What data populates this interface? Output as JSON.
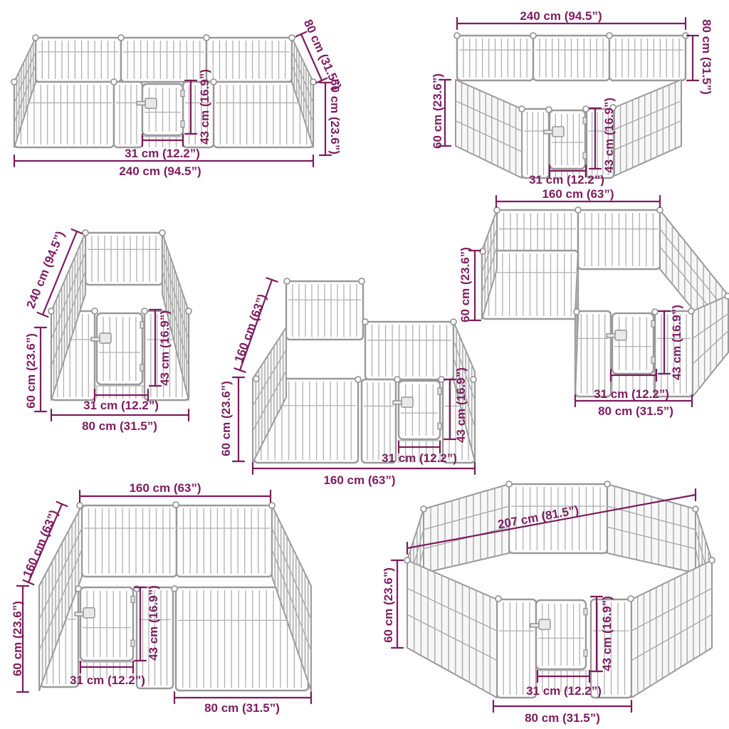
{
  "page": {
    "background": "#ffffff"
  },
  "colors": {
    "dimension": "#7d1c5f",
    "fence_outline": "#9a9a9a",
    "fence_bar": "#b0b0b0",
    "background": "#ffffff"
  },
  "configs": [
    {
      "id": "rectangle-240x80",
      "dims": {
        "bottom_width": "240 cm (94.5”)",
        "depth": "80 cm (31.5”)",
        "height": "60 cm (23.6”)",
        "door_height": "43 cm (16.9”)",
        "door_width": "31 cm (12.2”)"
      }
    },
    {
      "id": "trapezoid-240",
      "dims": {
        "top_width": "240 cm (94.5”)",
        "back_height": "80 cm (31.5”)",
        "front_height": "60 cm (23.6”)",
        "door_height": "43 cm (16.9”)",
        "door_width": "31 cm (12.2”)"
      }
    },
    {
      "id": "corridor-240x80",
      "dims": {
        "length": "240 cm (94.5”)",
        "height": "60 cm (23.6”)",
        "door_height": "43 cm (16.9”)",
        "door_width": "31 cm (12.2”)",
        "front_width": "80 cm (31.5”)"
      }
    },
    {
      "id": "square-160-raised-panel",
      "dims": {
        "depth": "160 cm (63”)",
        "height": "60 cm (23.6”)",
        "door_height": "43 cm (16.9”)",
        "door_width": "31 cm (12.2”)",
        "bottom_width": "160 cm (63”)"
      }
    },
    {
      "id": "l-shape-160x80",
      "dims": {
        "top_width": "160 cm (63”)",
        "height": "60 cm (23.6”)",
        "door_height": "43 cm (16.9”)",
        "door_width": "31 cm (12.2”)",
        "bottom_width": "80 cm (31.5”)"
      }
    },
    {
      "id": "square-160x160",
      "dims": {
        "top_width": "160 cm (63”)",
        "depth": "160 cm (63”)",
        "height": "60 cm (23.6”)",
        "door_height": "43 cm (16.9”)",
        "door_width": "31 cm (12.2”)",
        "bottom_width": "80 cm (31.5”)"
      }
    },
    {
      "id": "octagon-207",
      "dims": {
        "diagonal": "207 cm (81.5”)",
        "height": "60 cm (23.6”)",
        "door_height": "43 cm (16.9”)",
        "door_width": "31 cm (12.2”)",
        "bottom_width": "80 cm (31.5”)"
      }
    }
  ]
}
